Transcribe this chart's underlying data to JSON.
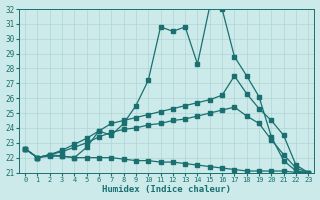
{
  "xlabel": "Humidex (Indice chaleur)",
  "xlim": [
    -0.5,
    23.5
  ],
  "ylim": [
    21,
    32
  ],
  "xticks": [
    0,
    1,
    2,
    3,
    4,
    5,
    6,
    7,
    8,
    9,
    10,
    11,
    12,
    13,
    14,
    15,
    16,
    17,
    18,
    19,
    20,
    21,
    22,
    23
  ],
  "yticks": [
    21,
    22,
    23,
    24,
    25,
    26,
    27,
    28,
    29,
    30,
    31,
    32
  ],
  "background_color": "#cceaea",
  "grid_color": "#b0d4d4",
  "line_color": "#1a7070",
  "line1_x": [
    0,
    1,
    2,
    3,
    4,
    5,
    6,
    7,
    8,
    9,
    10,
    11,
    12,
    13,
    14,
    15,
    16,
    17,
    18,
    19,
    20,
    21,
    22,
    23
  ],
  "line1_y": [
    22.6,
    22.0,
    22.2,
    22.1,
    22.0,
    22.7,
    23.8,
    23.5,
    24.3,
    25.5,
    27.2,
    30.8,
    30.5,
    30.8,
    28.3,
    32.2,
    32.0,
    28.8,
    27.5,
    26.1,
    23.4,
    21.8,
    21.1,
    21.0
  ],
  "line2_x": [
    0,
    1,
    2,
    3,
    4,
    5,
    6,
    7,
    8,
    9,
    10,
    11,
    12,
    13,
    14,
    15,
    16,
    17,
    18,
    19,
    20,
    21,
    22,
    23
  ],
  "line2_y": [
    22.6,
    22.0,
    22.2,
    22.5,
    22.9,
    23.3,
    23.8,
    24.3,
    24.5,
    24.7,
    24.9,
    25.1,
    25.3,
    25.5,
    25.7,
    25.9,
    26.2,
    27.5,
    26.3,
    25.3,
    24.5,
    23.5,
    21.5,
    21.0
  ],
  "line3_x": [
    0,
    1,
    2,
    3,
    4,
    5,
    6,
    7,
    8,
    9,
    10,
    11,
    12,
    13,
    14,
    15,
    16,
    17,
    18,
    19,
    20,
    21,
    22,
    23
  ],
  "line3_y": [
    22.6,
    22.0,
    22.2,
    22.4,
    22.7,
    23.0,
    23.4,
    23.7,
    23.9,
    24.0,
    24.2,
    24.3,
    24.5,
    24.6,
    24.8,
    25.0,
    25.2,
    25.4,
    24.8,
    24.3,
    23.2,
    22.2,
    21.3,
    21.0
  ],
  "line4_x": [
    0,
    1,
    2,
    3,
    4,
    5,
    6,
    7,
    8,
    9,
    10,
    11,
    12,
    13,
    14,
    15,
    16,
    17,
    18,
    19,
    20,
    21,
    22,
    23
  ],
  "line4_y": [
    22.6,
    22.0,
    22.1,
    22.1,
    22.0,
    22.0,
    22.0,
    22.0,
    21.9,
    21.8,
    21.8,
    21.7,
    21.7,
    21.6,
    21.5,
    21.4,
    21.3,
    21.2,
    21.1,
    21.1,
    21.1,
    21.1,
    21.0,
    21.0
  ]
}
